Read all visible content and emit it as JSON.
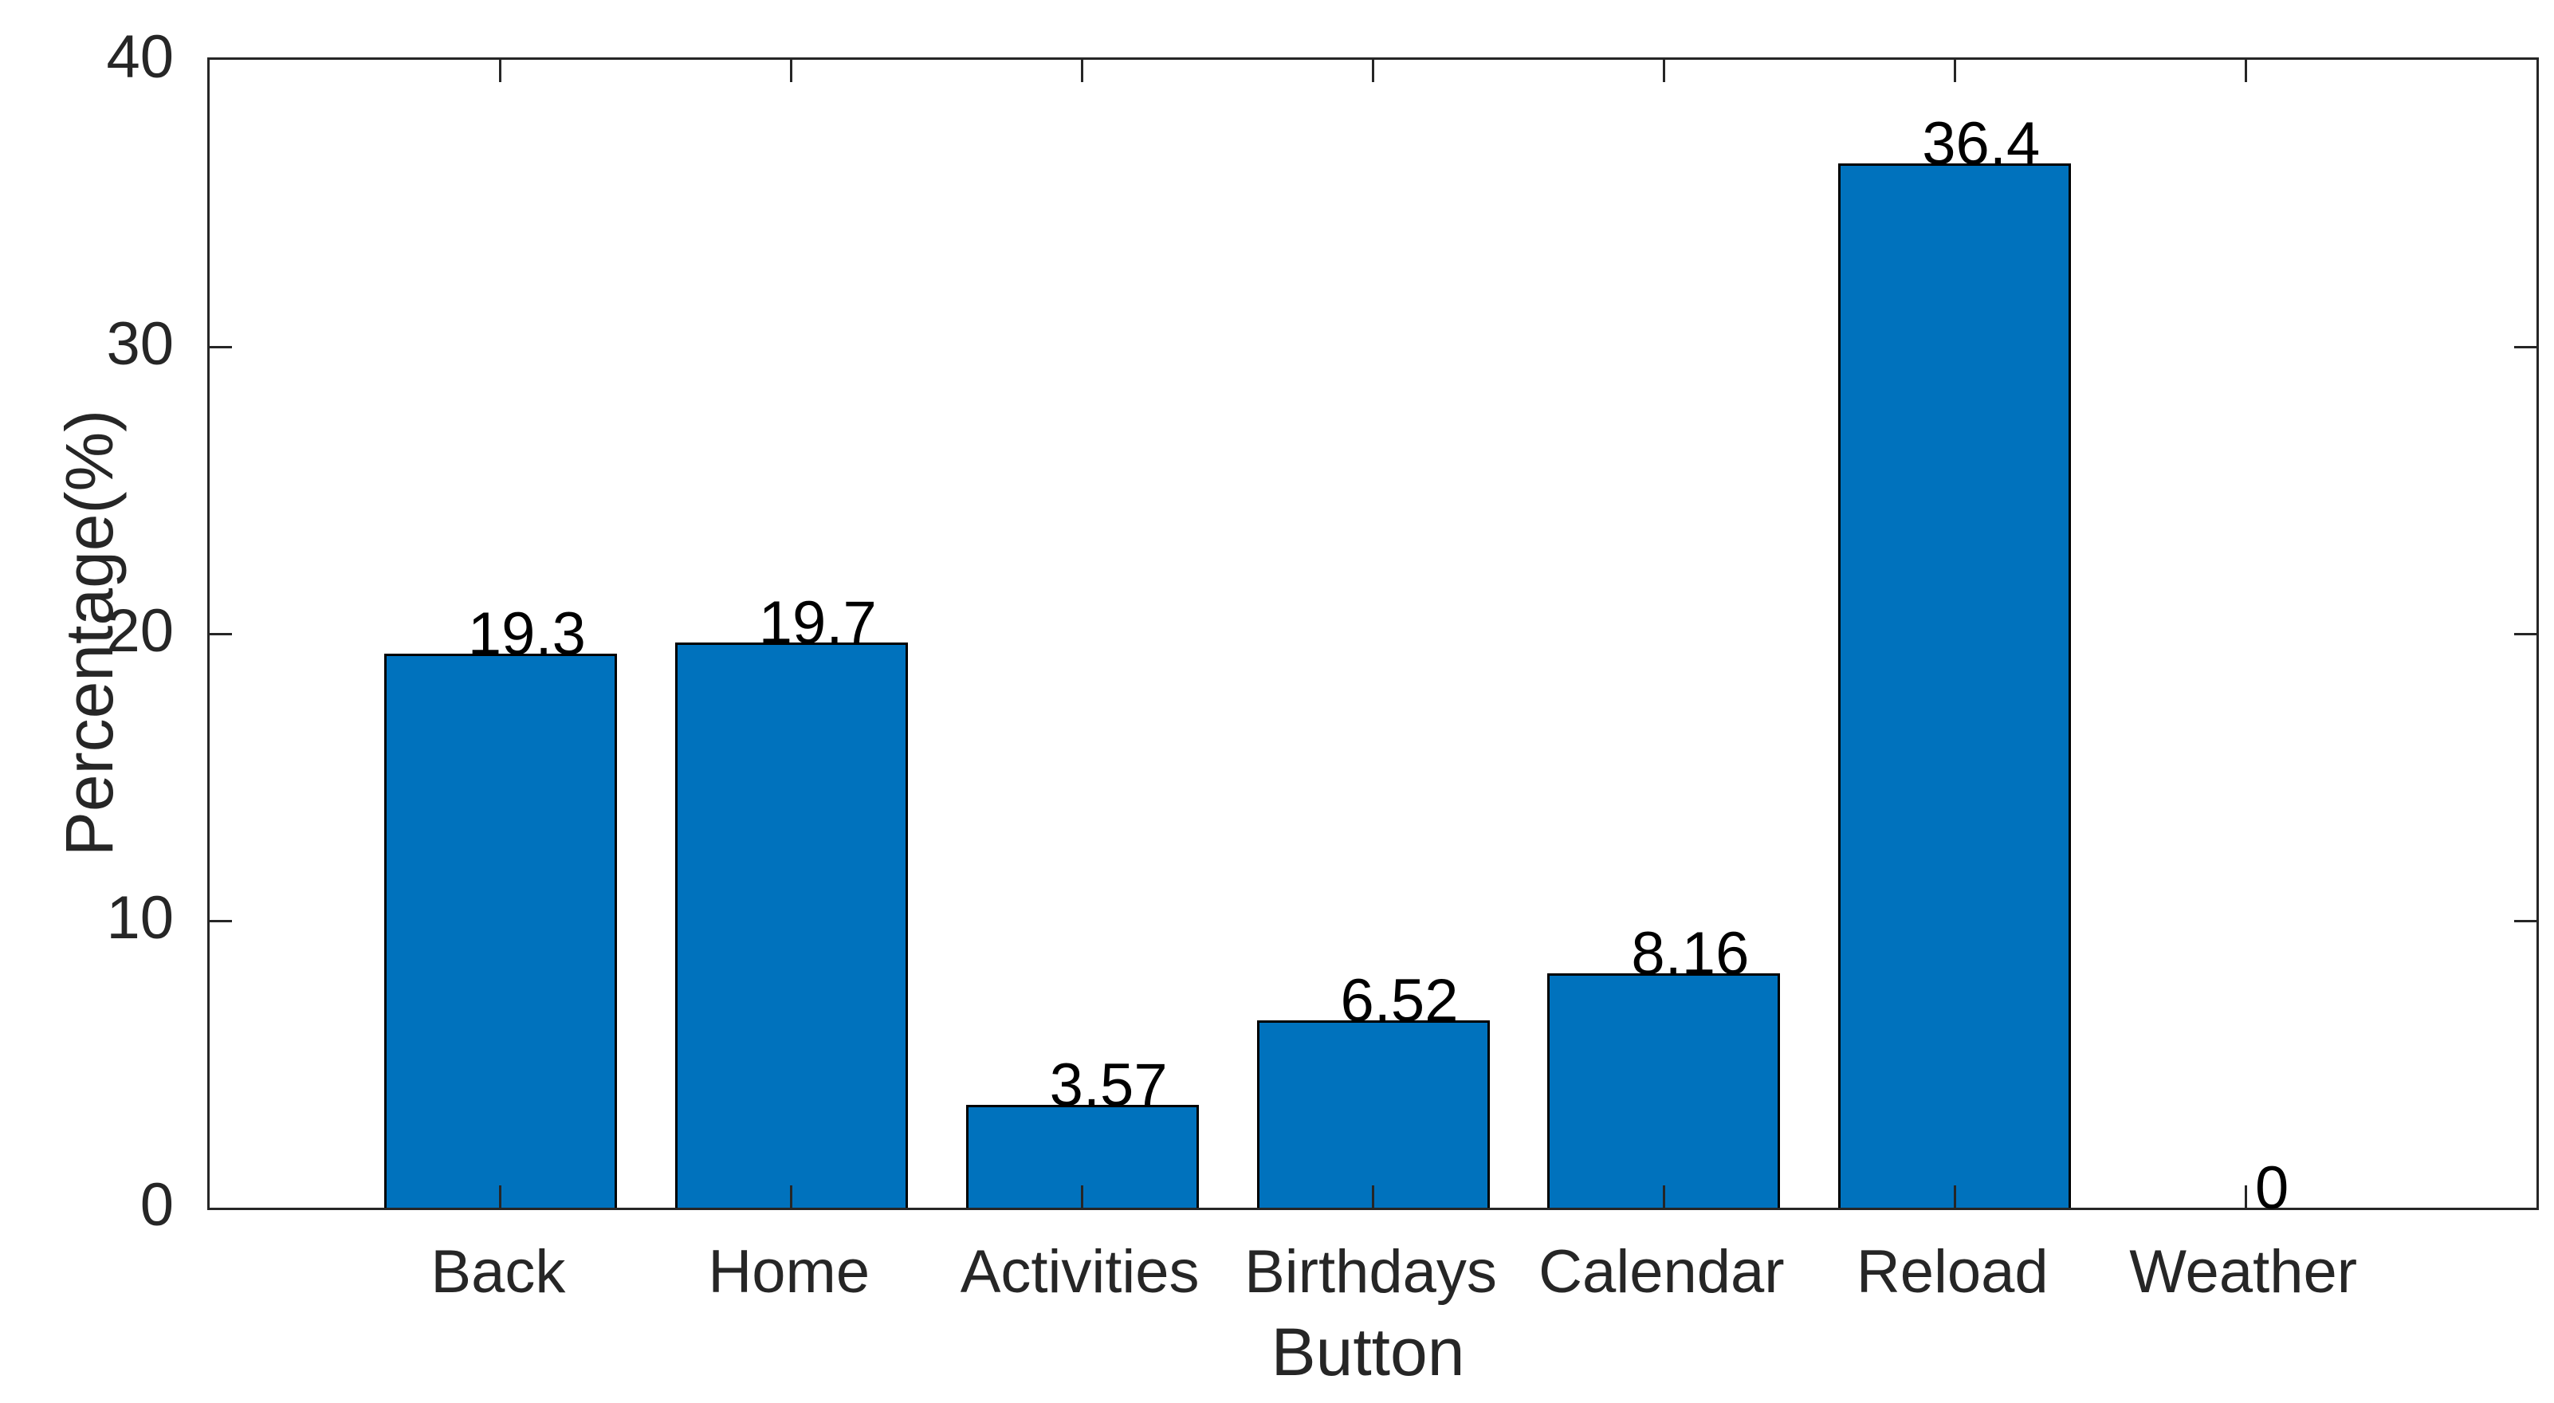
{
  "chart_data": {
    "type": "bar",
    "title": "",
    "xlabel": "Button",
    "ylabel": "Percentage(%)",
    "categories": [
      "Back",
      "Home",
      "Activities",
      "Birthdays",
      "Calendar",
      "Reload",
      "Weather"
    ],
    "values": [
      19.3,
      19.7,
      3.57,
      6.52,
      8.16,
      36.4,
      0
    ],
    "value_labels": [
      "19.3",
      "19.7",
      "3.57",
      "6.52",
      "8.16",
      "36.4",
      "0"
    ],
    "ylim": [
      0,
      40
    ],
    "yticks": [
      0,
      10,
      20,
      30,
      40
    ],
    "ytick_labels": [
      "0",
      "10",
      "20",
      "30",
      "40"
    ],
    "grid": "off",
    "legend": "none",
    "bar_color": "#0072BD",
    "bar_edge_color": "#000000",
    "axis_color": "#262626",
    "text_color": "#262626",
    "value_label_color": "#000000",
    "background_color": "#FFFFFF"
  }
}
